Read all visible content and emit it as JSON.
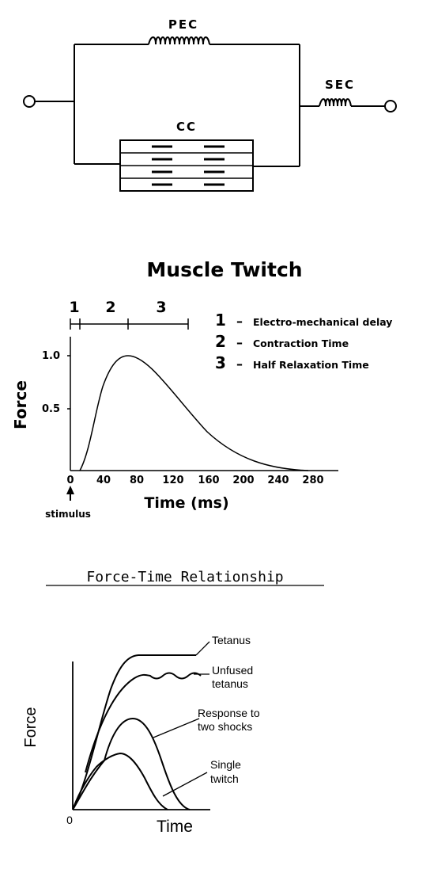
{
  "circuit": {
    "pec_label": "PEC",
    "cc_label": "CC",
    "sec_label": "SEC"
  },
  "twitch": {
    "title": "Muscle Twitch",
    "phase_numbers": [
      "1",
      "2",
      "3"
    ],
    "legend": [
      {
        "number": "1",
        "dash": "–",
        "text": "Electro-mechanical delay"
      },
      {
        "number": "2",
        "dash": "–",
        "text": "Contraction Time"
      },
      {
        "number": "3",
        "dash": "–",
        "text": "Half Relaxation Time"
      }
    ],
    "ylabel": "Force",
    "xlabel": "Time (ms)",
    "y_ticks": [
      "1.0",
      "0.5"
    ],
    "x_ticks": [
      "0",
      "40",
      "80",
      "120",
      "160",
      "200",
      "240",
      "280"
    ],
    "stimulus_label": "stimulus"
  },
  "force_time": {
    "title": "Force-Time Relationship",
    "ylabel": "Force",
    "xlabel": "Time",
    "origin_label": "0",
    "labels": {
      "tetanus": "Tetanus",
      "unfused_1": "Unfused",
      "unfused_2": "tetanus",
      "two_shocks_1": "Response to",
      "two_shocks_2": "two shocks",
      "single_1": "Single",
      "single_2": "twitch"
    }
  }
}
